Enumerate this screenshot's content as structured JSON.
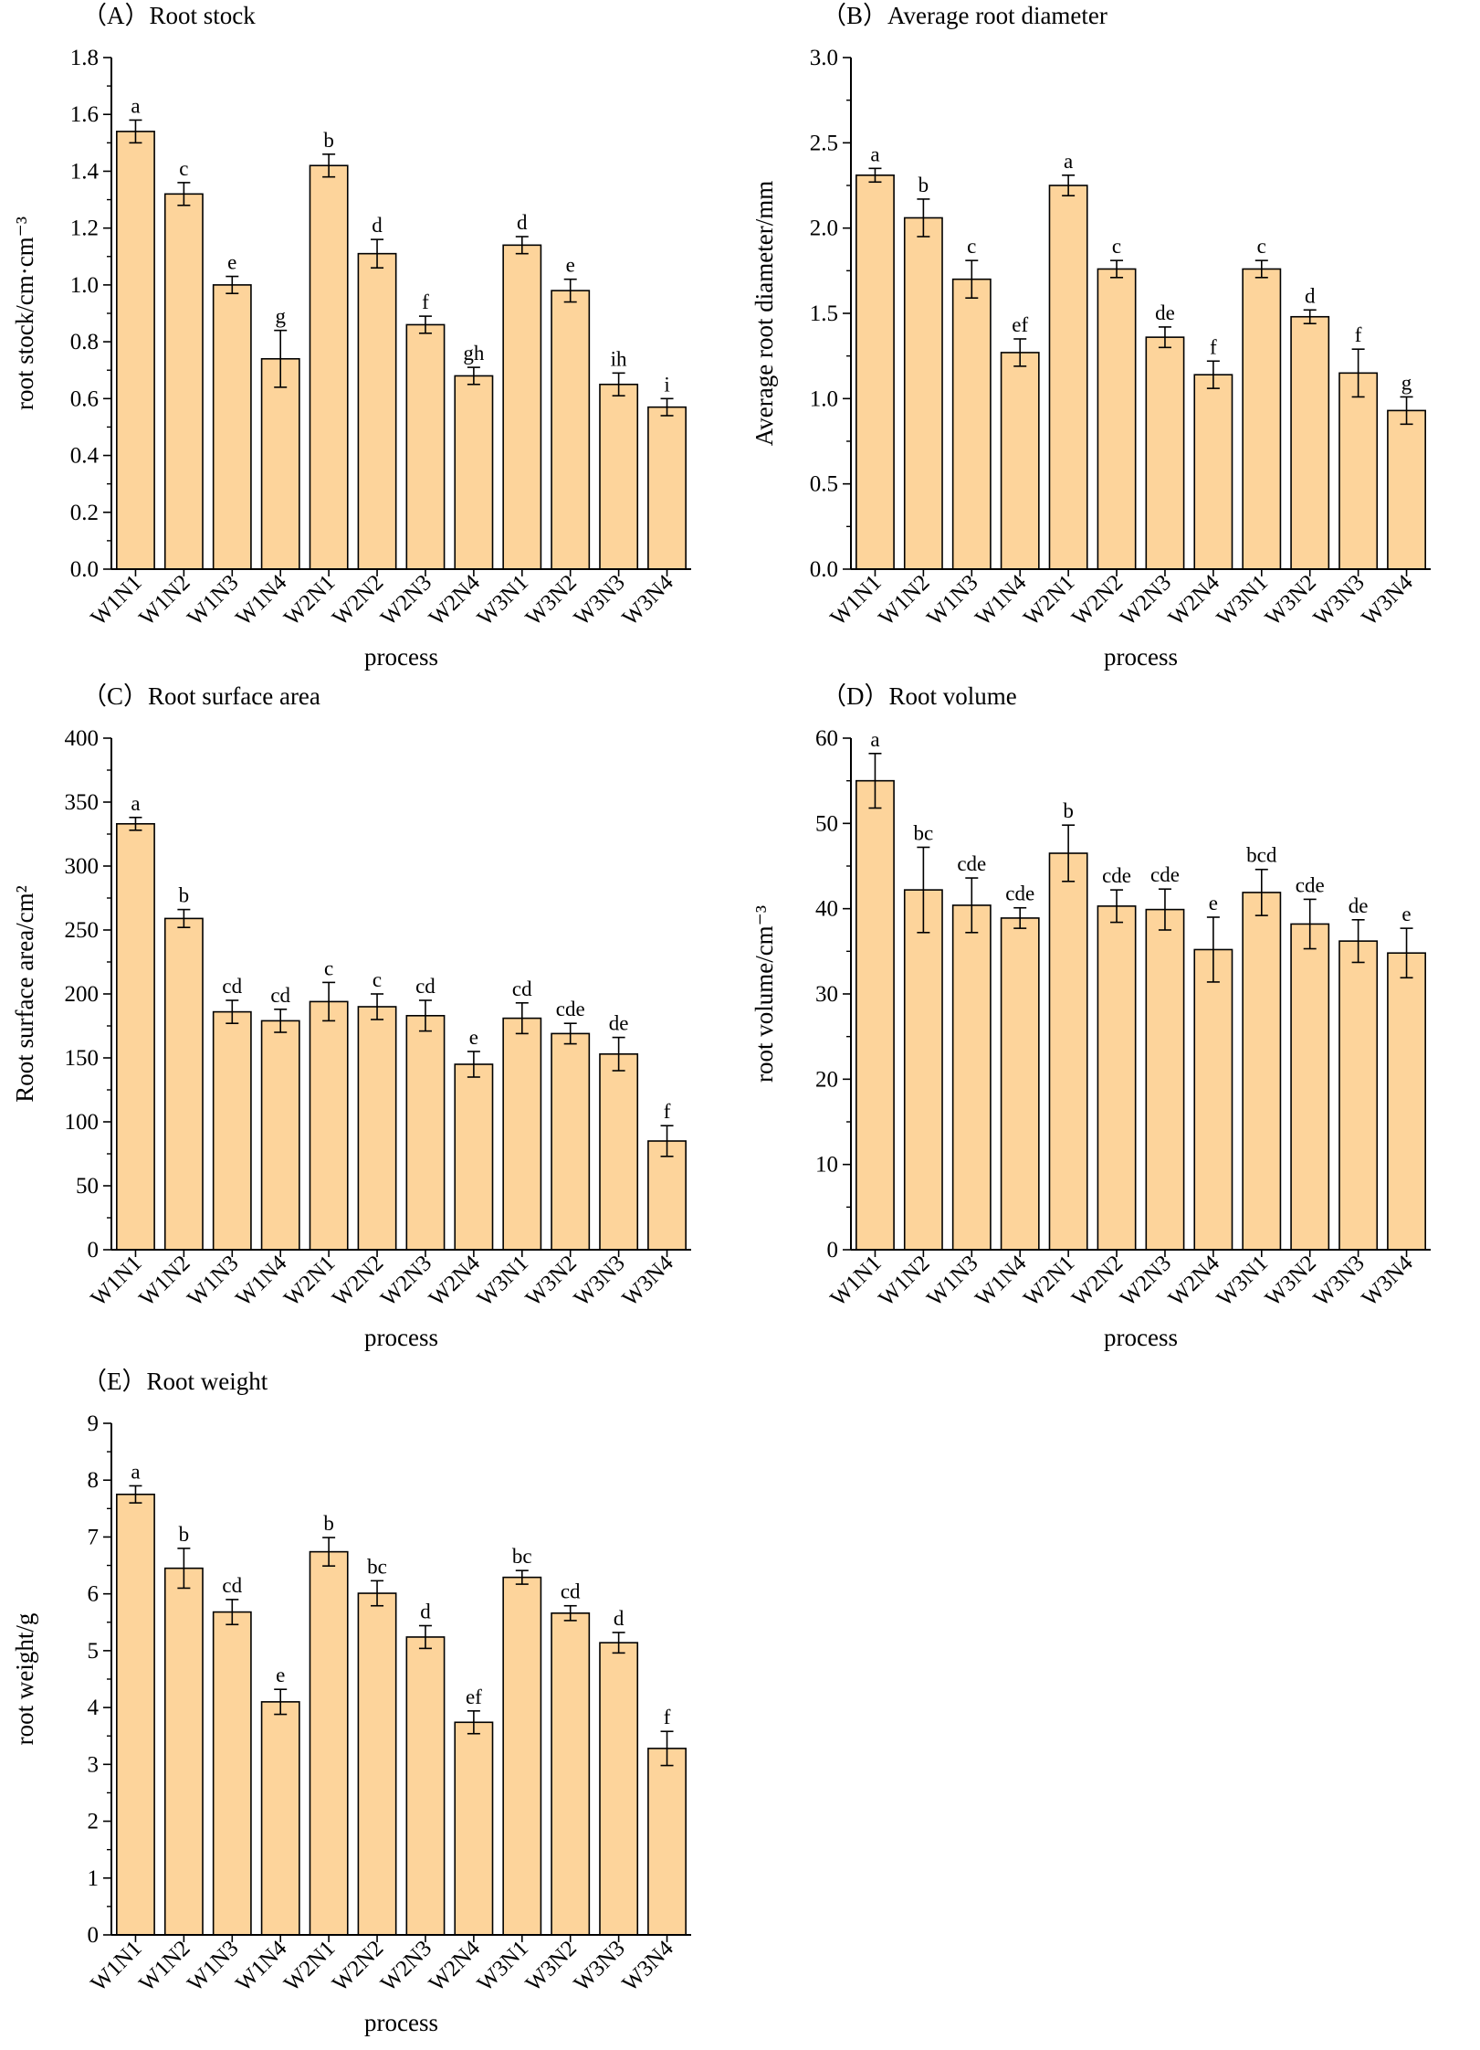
{
  "chart_data": [
    {
      "type": "bar",
      "title": "（A）Root stock",
      "xlabel": "process",
      "ylabel": "root stock/cm·cm⁻³",
      "categories": [
        "W1N1",
        "W1N2",
        "W1N3",
        "W1N4",
        "W2N1",
        "W2N2",
        "W2N3",
        "W2N4",
        "W3N1",
        "W3N2",
        "W3N3",
        "W3N4"
      ],
      "values": [
        1.54,
        1.32,
        1.0,
        0.74,
        1.42,
        1.11,
        0.86,
        0.68,
        1.14,
        0.98,
        0.65,
        0.57
      ],
      "errors": [
        0.04,
        0.04,
        0.03,
        0.1,
        0.04,
        0.05,
        0.03,
        0.03,
        0.03,
        0.04,
        0.04,
        0.03
      ],
      "significance": [
        "a",
        "c",
        "e",
        "g",
        "b",
        "d",
        "f",
        "gh",
        "d",
        "e",
        "ih",
        "i"
      ],
      "ylim": [
        0,
        1.8
      ],
      "yticks": [
        0.0,
        0.2,
        0.4,
        0.6,
        0.8,
        1.0,
        1.2,
        1.4,
        1.6,
        1.8
      ],
      "tick_decimals": 1
    },
    {
      "type": "bar",
      "title": "（B）Average root diameter",
      "xlabel": "process",
      "ylabel": "Average root diameter/mm",
      "categories": [
        "W1N1",
        "W1N2",
        "W1N3",
        "W1N4",
        "W2N1",
        "W2N2",
        "W2N3",
        "W2N4",
        "W3N1",
        "W3N2",
        "W3N3",
        "W3N4"
      ],
      "values": [
        2.31,
        2.06,
        1.7,
        1.27,
        2.25,
        1.76,
        1.36,
        1.14,
        1.76,
        1.48,
        1.15,
        0.93
      ],
      "errors": [
        0.04,
        0.11,
        0.11,
        0.08,
        0.06,
        0.05,
        0.06,
        0.08,
        0.05,
        0.04,
        0.14,
        0.08
      ],
      "significance": [
        "a",
        "b",
        "c",
        "ef",
        "a",
        "c",
        "de",
        "f",
        "c",
        "d",
        "f",
        "g"
      ],
      "ylim": [
        0,
        3.0
      ],
      "yticks": [
        0.0,
        0.5,
        1.0,
        1.5,
        2.0,
        2.5,
        3.0
      ],
      "tick_decimals": 1
    },
    {
      "type": "bar",
      "title": "（C）Root surface area",
      "xlabel": "process",
      "ylabel": "Root surface area/cm²",
      "categories": [
        "W1N1",
        "W1N2",
        "W1N3",
        "W1N4",
        "W2N1",
        "W2N2",
        "W2N3",
        "W2N4",
        "W3N1",
        "W3N2",
        "W3N3",
        "W3N4"
      ],
      "values": [
        333,
        259,
        186,
        179,
        194,
        190,
        183,
        145,
        181,
        169,
        153,
        85
      ],
      "errors": [
        5,
        7,
        9,
        9,
        15,
        10,
        12,
        10,
        12,
        8,
        13,
        12
      ],
      "significance": [
        "a",
        "b",
        "cd",
        "cd",
        "c",
        "c",
        "cd",
        "e",
        "cd",
        "cde",
        "de",
        "f"
      ],
      "ylim": [
        0,
        400
      ],
      "yticks": [
        0,
        50,
        100,
        150,
        200,
        250,
        300,
        350,
        400
      ],
      "tick_decimals": 0
    },
    {
      "type": "bar",
      "title": "（D）Root volume",
      "xlabel": "process",
      "ylabel": "root volume/cm⁻³",
      "categories": [
        "W1N1",
        "W1N2",
        "W1N3",
        "W1N4",
        "W2N1",
        "W2N2",
        "W2N3",
        "W2N4",
        "W3N1",
        "W3N2",
        "W3N3",
        "W3N4"
      ],
      "values": [
        55.0,
        42.2,
        40.4,
        38.9,
        46.5,
        40.3,
        39.9,
        35.2,
        41.9,
        38.2,
        36.2,
        34.8
      ],
      "errors": [
        3.2,
        5.0,
        3.2,
        1.2,
        3.3,
        1.9,
        2.4,
        3.8,
        2.7,
        2.9,
        2.5,
        2.9
      ],
      "significance": [
        "a",
        "bc",
        "cde",
        "cde",
        "b",
        "cde",
        "cde",
        "e",
        "bcd",
        "cde",
        "de",
        "e"
      ],
      "ylim": [
        0,
        60
      ],
      "yticks": [
        0,
        10,
        20,
        30,
        40,
        50,
        60
      ],
      "tick_decimals": 0
    },
    {
      "type": "bar",
      "title": "（E）Root weight",
      "xlabel": "process",
      "ylabel": "root weight/g",
      "categories": [
        "W1N1",
        "W1N2",
        "W1N3",
        "W1N4",
        "W2N1",
        "W2N2",
        "W2N3",
        "W2N4",
        "W3N1",
        "W3N2",
        "W3N3",
        "W3N4"
      ],
      "values": [
        7.75,
        6.45,
        5.68,
        4.1,
        6.74,
        6.01,
        5.24,
        3.74,
        6.29,
        5.66,
        5.14,
        3.28
      ],
      "errors": [
        0.15,
        0.35,
        0.22,
        0.22,
        0.25,
        0.22,
        0.2,
        0.2,
        0.12,
        0.13,
        0.18,
        0.3
      ],
      "significance": [
        "a",
        "b",
        "cd",
        "e",
        "b",
        "bc",
        "d",
        "ef",
        "bc",
        "cd",
        "d",
        "f"
      ],
      "ylim": [
        0,
        9
      ],
      "yticks": [
        0,
        1,
        2,
        3,
        4,
        5,
        6,
        7,
        8,
        9
      ],
      "tick_decimals": 0
    }
  ],
  "style": {
    "bar_fill": "#FDD49B",
    "bar_stroke": "#000000",
    "axis_color": "#000000"
  }
}
